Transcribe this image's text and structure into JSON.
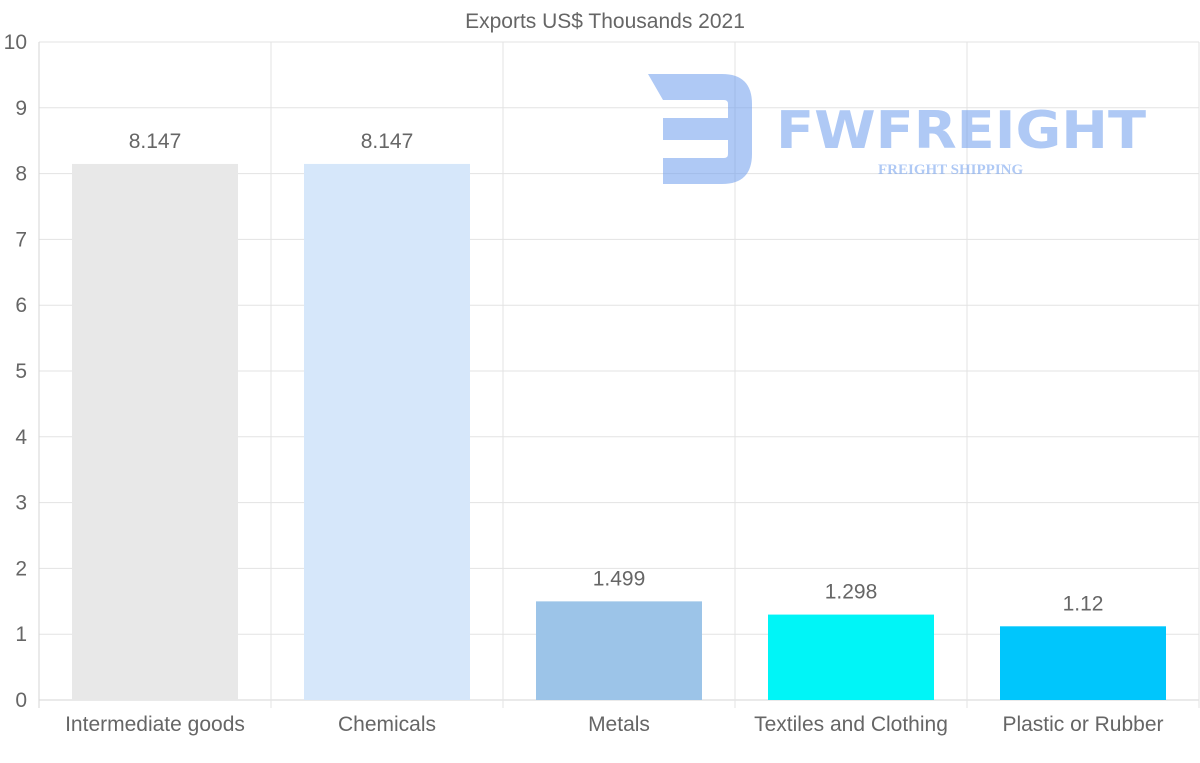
{
  "chart_data": {
    "type": "bar",
    "title": "Exports US$ Thousands 2021",
    "categories": [
      "Intermediate goods",
      "Chemicals",
      "Metals",
      "Textiles and Clothing",
      "Plastic or Rubber"
    ],
    "values": [
      8.147,
      8.147,
      1.499,
      1.298,
      1.12
    ],
    "value_labels": [
      "8.147",
      "8.147",
      "1.499",
      "1.298",
      "1.12"
    ],
    "colors": [
      "#e8e8e8",
      "#d6e7fa",
      "#9cc4e8",
      "#00f5f7",
      "#00c6fc"
    ],
    "ylim": [
      0,
      10
    ],
    "yticks": [
      "0",
      "1",
      "2",
      "3",
      "4",
      "5",
      "6",
      "7",
      "8",
      "9",
      "10"
    ],
    "xlabel": "",
    "ylabel": "",
    "grid": true
  },
  "watermark": {
    "brand": "FWFREIGHT",
    "tagline": "FREIGHT SHIPPING",
    "color": "#6e9ded"
  }
}
